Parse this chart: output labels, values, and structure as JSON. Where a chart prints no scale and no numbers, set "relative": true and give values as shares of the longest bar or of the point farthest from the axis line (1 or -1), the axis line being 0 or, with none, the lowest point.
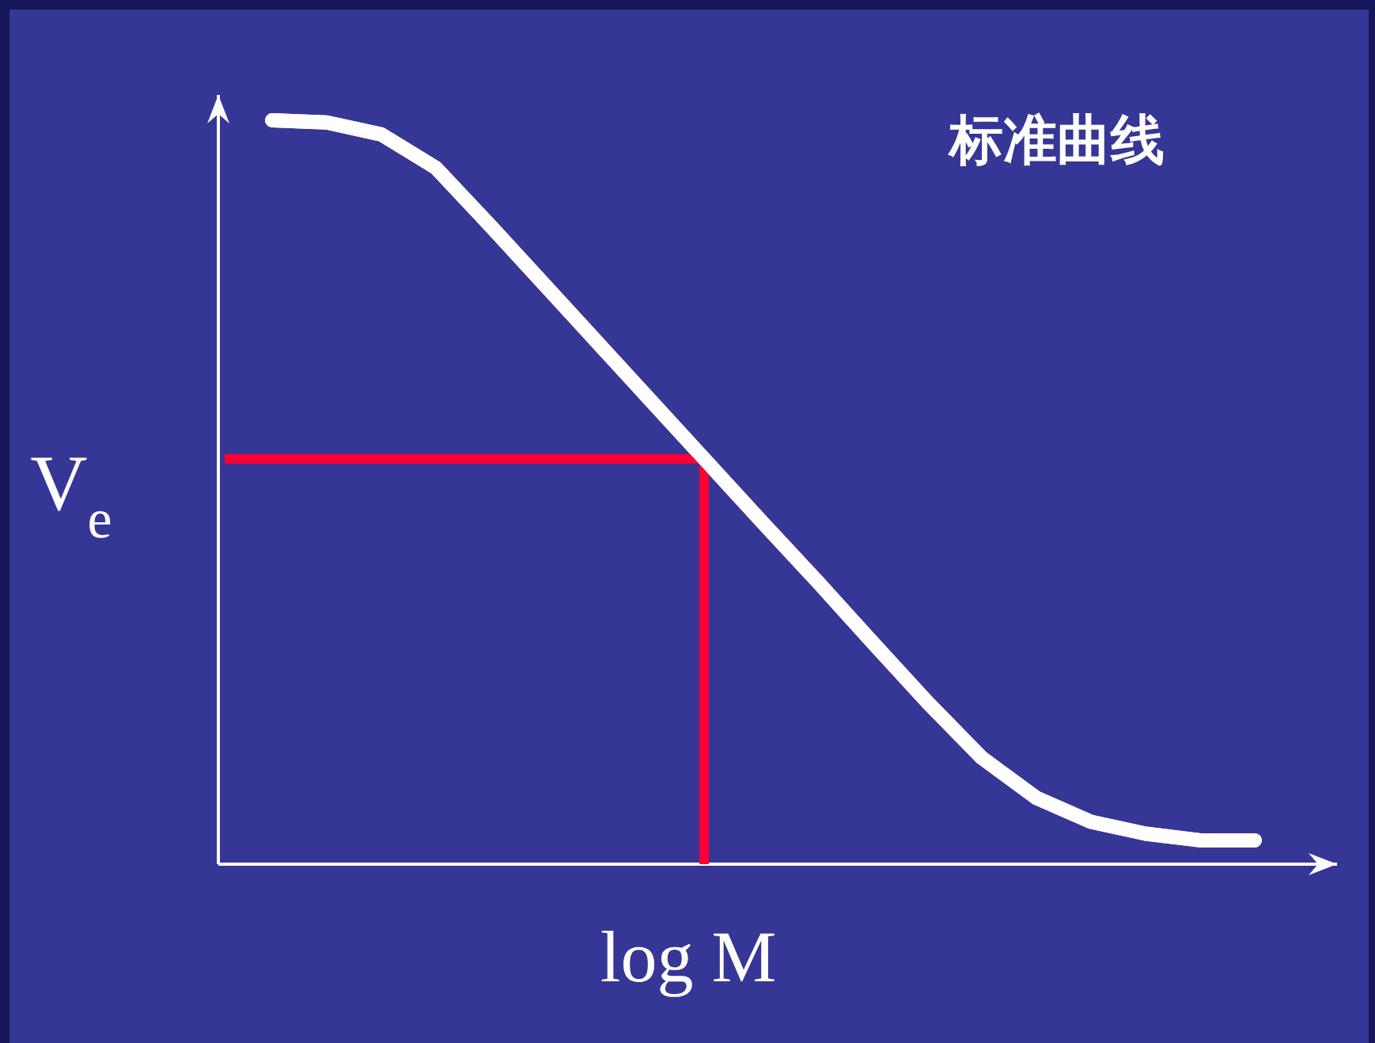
{
  "chart_data": {
    "type": "line",
    "title": "标准曲线",
    "xlabel": "log M",
    "ylabel": "V$_{e}$",
    "relative": true,
    "tick_labels": false,
    "grid": false,
    "legend": false,
    "marker": "none",
    "line_style": "solid",
    "categories": [
      null,
      null,
      null,
      null,
      null,
      null,
      null,
      null,
      null,
      null,
      null,
      null,
      null,
      null,
      null,
      null,
      null,
      null,
      null
    ],
    "series": [
      {
        "color": "#ffffff",
        "values": [
          1,
          0.997,
          0.981,
          0.936,
          0.858,
          0.778,
          0.698,
          0.618,
          0.538,
          0.458,
          0.379,
          0.298,
          0.218,
          0.143,
          0.089,
          0.057,
          0.041,
          0.032,
          0.032
        ]
      }
    ],
    "ref_lines": [
      {
        "axis": "y",
        "value": 0.545,
        "color": "#ff0033"
      }
    ]
  }
}
